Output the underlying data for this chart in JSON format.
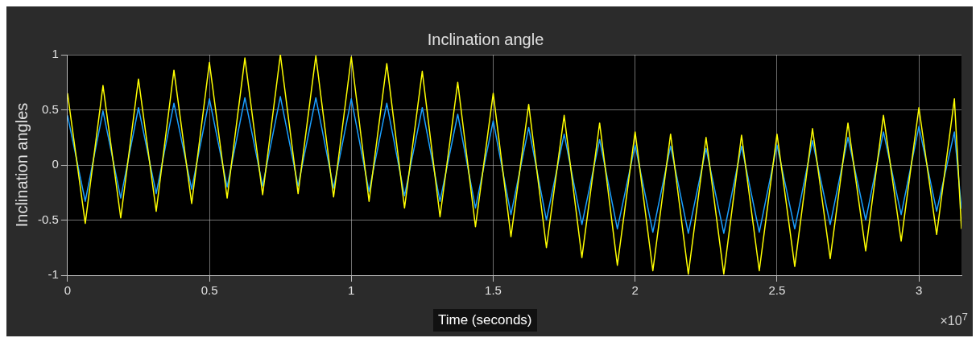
{
  "chart_data": {
    "type": "line",
    "title": "Inclination angle",
    "xlabel": "Time (seconds)",
    "ylabel": "Inclination angles",
    "annotations": [
      "×10$^{7}$"
    ],
    "x": [
      0,
      0.0625,
      0.125,
      0.1875,
      0.25,
      0.3125,
      0.375,
      0.4375,
      0.5,
      0.5625,
      0.625,
      0.6875,
      0.75,
      0.8125,
      0.875,
      0.9375,
      1,
      1.0625,
      1.125,
      1.1875,
      1.25,
      1.3125,
      1.375,
      1.4375,
      1.5,
      1.5625,
      1.625,
      1.6875,
      1.75,
      1.8125,
      1.875,
      1.9375,
      2,
      2.0625,
      2.125,
      2.1875,
      2.25,
      2.3125,
      2.375,
      2.4375,
      2.5,
      2.5625,
      2.625,
      2.6875,
      2.75,
      2.8125,
      2.875,
      2.9375,
      3,
      3.0625,
      3.125,
      3.15
    ],
    "series": [
      {
        "color": "#ffff00",
        "values": [
          0.65,
          -0.53,
          0.72,
          -0.48,
          0.78,
          -0.42,
          0.86,
          -0.35,
          0.93,
          -0.3,
          0.97,
          -0.27,
          1,
          -0.26,
          0.99,
          -0.29,
          0.98,
          -0.33,
          0.92,
          -0.39,
          0.85,
          -0.47,
          0.75,
          -0.56,
          0.65,
          -0.65,
          0.55,
          -0.75,
          0.45,
          -0.84,
          0.38,
          -0.91,
          0.3,
          -0.96,
          0.28,
          -0.99,
          0.25,
          -0.99,
          0.27,
          -0.96,
          0.28,
          -0.92,
          0.33,
          -0.85,
          0.38,
          -0.78,
          0.45,
          -0.69,
          0.52,
          -0.63,
          0.6,
          -0.58
        ]
      },
      {
        "color": "#1a9fff",
        "values": [
          0.45,
          -0.33,
          0.49,
          -0.3,
          0.52,
          -0.26,
          0.56,
          -0.22,
          0.6,
          -0.2,
          0.61,
          -0.19,
          0.62,
          -0.19,
          0.61,
          -0.21,
          0.6,
          -0.24,
          0.56,
          -0.28,
          0.52,
          -0.33,
          0.46,
          -0.39,
          0.4,
          -0.45,
          0.34,
          -0.5,
          0.28,
          -0.54,
          0.23,
          -0.58,
          0.18,
          -0.61,
          0.17,
          -0.62,
          0.15,
          -0.62,
          0.17,
          -0.61,
          0.18,
          -0.58,
          0.22,
          -0.54,
          0.25,
          -0.5,
          0.3,
          -0.45,
          0.35,
          -0.42,
          0.3,
          -0.4
        ]
      }
    ],
    "xlim": [
      0,
      3.15
    ],
    "xticks": [
      0,
      0.5,
      1,
      1.5,
      2,
      2.5,
      3
    ],
    "ylim": [
      -1,
      1
    ],
    "yticks": [
      -1,
      -0.5,
      0,
      0.5,
      1
    ],
    "grid": true,
    "legend": false
  }
}
